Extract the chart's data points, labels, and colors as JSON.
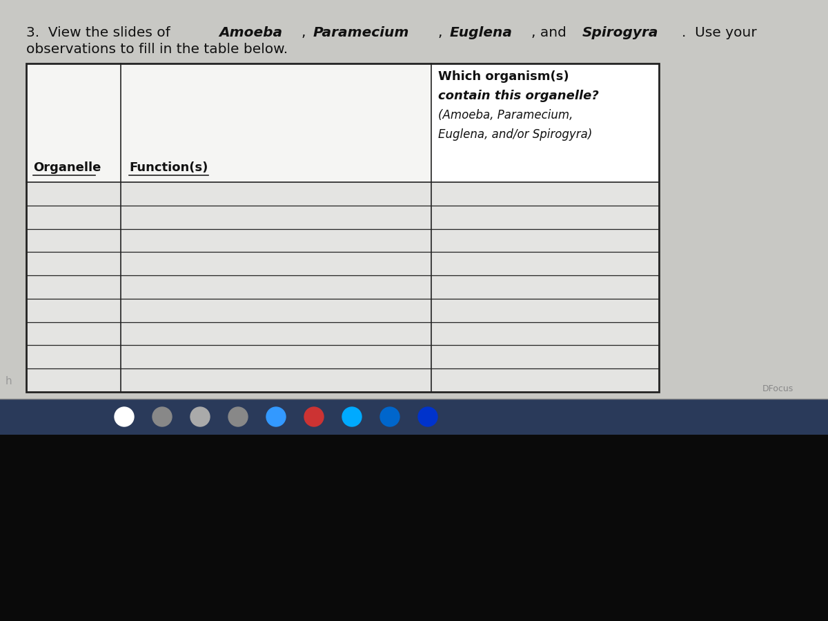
{
  "title_line1_plain": "3.  View the slides of Amoeba, Paramecium, Euglena, and Spirogyra.  Use your",
  "title_line2": "observations to fill in the table below.",
  "col1_header": "Organelle",
  "col2_header": "Function(s)",
  "col3_header_lines": [
    "Which organism(s)",
    "contain this organelle?",
    "(Amoeba, Paramecium,",
    "Euglena, and/or Spirogyra)"
  ],
  "num_data_rows": 9,
  "bg_light": "#c8c8c4",
  "bg_dark": "#0a0a0a",
  "taskbar_color": "#2a3a5a",
  "table_white": "#f0f0ee",
  "table_cell": "#e4e4e2",
  "header_cell_bg": "#f5f5f3",
  "border_color": "#222222",
  "text_color": "#111111"
}
